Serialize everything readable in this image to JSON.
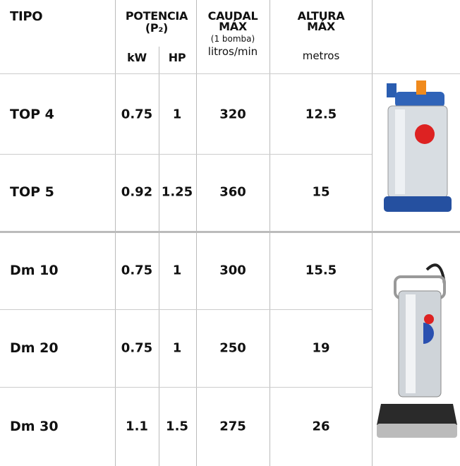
{
  "header": {
    "tipo": "TIPO",
    "potencia": "POTENCIA",
    "p2": "(P₂)",
    "kw": "kW",
    "hp": "HP",
    "caudal": "CAUDAL",
    "caudal_max": "MÁX",
    "bomba": "(1 bomba)",
    "litros": "litros/min",
    "altura": "ALTURA",
    "altura_max": "MÁX",
    "metros": "metros"
  },
  "table": {
    "rows": [
      [
        "TOP 4",
        "0.75",
        "1",
        "320",
        "12.5"
      ],
      [
        "TOP 5",
        "0.92",
        "1.25",
        "360",
        "15"
      ],
      [
        "Dm 10",
        "0.75",
        "1",
        "300",
        "15.5"
      ],
      [
        "Dm 20",
        "0.75",
        "1",
        "250",
        "19"
      ],
      [
        "Dm 30",
        "1.1",
        "1.5",
        "275",
        "26"
      ]
    ]
  }
}
